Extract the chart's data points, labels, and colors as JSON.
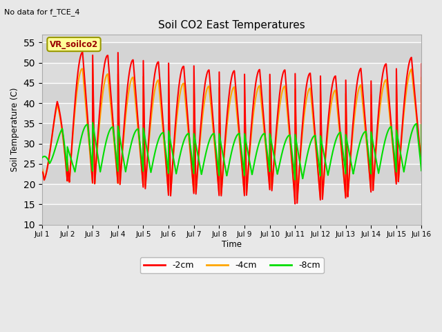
{
  "title": "Soil CO2 East Temperatures",
  "no_data_text": "No data for f_TCE_4",
  "annotation_text": "VR_soilco2",
  "xlabel": "Time",
  "ylabel": "Soil Temperature (C)",
  "ylim": [
    10,
    57
  ],
  "yticks": [
    10,
    15,
    20,
    25,
    30,
    35,
    40,
    45,
    50,
    55
  ],
  "xtick_labels": [
    "Jul 1",
    "Jul 2",
    "Jul 3",
    "Jul 4",
    "Jul 5",
    "Jul 6",
    "Jul 7",
    "Jul 8",
    "Jul 9",
    "Jul 10",
    "Jul 11",
    "Jul 12",
    "Jul 13",
    "Jul 14",
    "Jul 15",
    "Jul 16"
  ],
  "color_2cm": "#ff0000",
  "color_4cm": "#ffa500",
  "color_8cm": "#00dd00",
  "legend_labels": [
    "-2cm",
    "-4cm",
    "-8cm"
  ],
  "n_days": 15,
  "plot_bg": "#dcdcdc",
  "fig_bg": "#e8e8e8",
  "grid_color": "#ffffff",
  "band_colors": [
    "#d8d8d8",
    "#e0e0e0"
  ],
  "peaks_2cm": [
    23,
    52,
    53,
    51,
    50.5,
    50,
    48.5,
    48,
    48,
    48.5,
    48,
    47,
    46.5,
    50,
    49.5,
    52.5,
    54
  ],
  "troughs_2cm": [
    21,
    20.5,
    20,
    20,
    19,
    17,
    17.5,
    17,
    17,
    18.5,
    15,
    16,
    16.5,
    18,
    20,
    24,
    24
  ],
  "peaks_4cm": [
    24,
    50,
    47.5,
    47,
    46,
    45.5,
    44.5,
    44,
    44,
    44.5,
    44,
    43.5,
    43,
    45.5,
    46,
    50,
    51
  ],
  "troughs_4cm": [
    21,
    20.5,
    20,
    20,
    19.5,
    17.5,
    18,
    17.5,
    17.5,
    19,
    16,
    16.5,
    17,
    18.5,
    20.5,
    24.5,
    24
  ],
  "peaks_8cm": [
    26.5,
    35.5,
    34.5,
    34,
    33.5,
    32.5,
    32.5,
    32.5,
    32.5,
    32.5,
    32,
    32,
    33,
    33,
    34.5,
    35,
    27
  ],
  "troughs_8cm": [
    26,
    23,
    23,
    23,
    23,
    22.5,
    22.5,
    22,
    22,
    23,
    21,
    22,
    22.5,
    22.5,
    23,
    23,
    24
  ]
}
